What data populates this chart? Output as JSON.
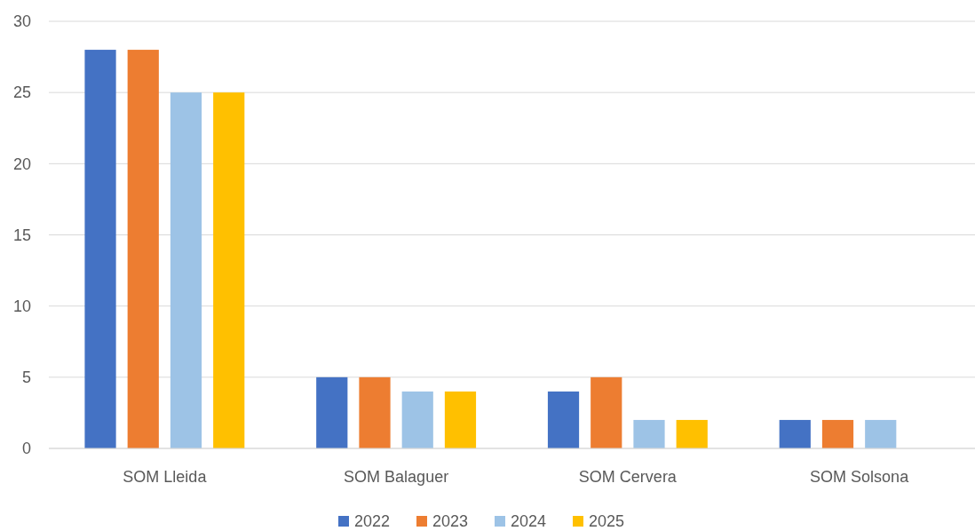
{
  "chart_data": {
    "type": "bar",
    "categories": [
      "SOM Lleida",
      "SOM Balaguer",
      "SOM Cervera",
      "SOM Solsona"
    ],
    "series": [
      {
        "name": "2022",
        "color": "#4472c4",
        "values": [
          28,
          5,
          4,
          2
        ]
      },
      {
        "name": "2023",
        "color": "#ed7d31",
        "values": [
          28,
          5,
          5,
          2
        ]
      },
      {
        "name": "2024",
        "color": "#9dc3e6",
        "values": [
          25,
          4,
          2,
          2
        ]
      },
      {
        "name": "2025",
        "color": "#ffc000",
        "values": [
          25,
          4,
          2,
          0
        ]
      }
    ],
    "ylim": [
      0,
      30
    ],
    "yticks": [
      0,
      5,
      10,
      15,
      20,
      25,
      30
    ],
    "grid": "y",
    "legend": "bottom"
  }
}
